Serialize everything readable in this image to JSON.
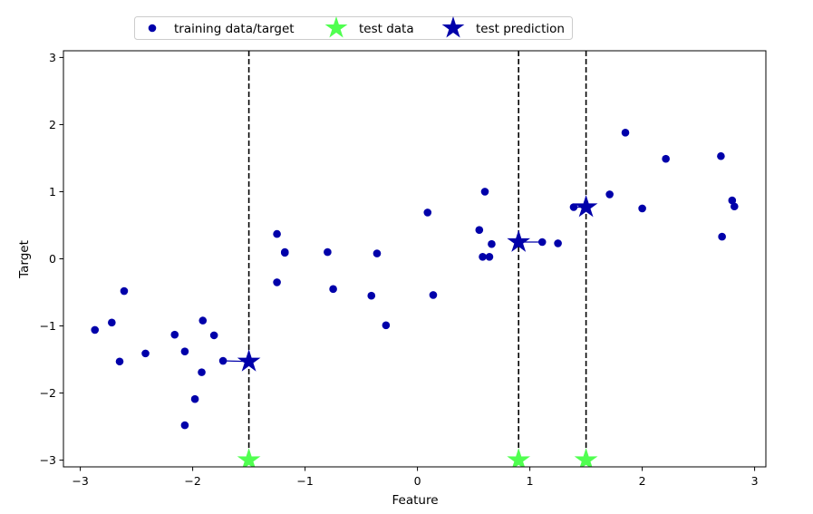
{
  "chart_data": {
    "type": "scatter",
    "title": "",
    "xlabel": "Feature",
    "ylabel": "Target",
    "xlim": [
      -3.15,
      3.1
    ],
    "ylim": [
      -3.1,
      3.1
    ],
    "xticks": [
      -3,
      -2,
      -1,
      0,
      1,
      2,
      3
    ],
    "yticks": [
      -3,
      -2,
      -1,
      0,
      1,
      2,
      3
    ],
    "xtick_labels": [
      "−3",
      "−2",
      "−1",
      "0",
      "1",
      "2",
      "3"
    ],
    "ytick_labels": [
      "−3",
      "−2",
      "−1",
      "0",
      "1",
      "2",
      "3"
    ],
    "grid": false,
    "legend_placement": "top-center, above plot",
    "colors": {
      "training": "#0000aa",
      "test_data": "#50ff50",
      "test_prediction": "#0000aa",
      "vline": "#000000"
    },
    "legend": [
      {
        "key": "training",
        "label": "training data/target",
        "marker": "circle"
      },
      {
        "key": "test_data",
        "label": "test data",
        "marker": "star"
      },
      {
        "key": "test_prediction",
        "label": "test prediction",
        "marker": "star"
      }
    ],
    "series": [
      {
        "name": "training data/target",
        "key": "training",
        "marker": "circle",
        "points": [
          [
            -2.87,
            -1.06
          ],
          [
            -2.72,
            -0.95
          ],
          [
            -2.65,
            -1.53
          ],
          [
            -2.61,
            -0.48
          ],
          [
            -2.42,
            -1.41
          ],
          [
            -2.16,
            -1.13
          ],
          [
            -2.07,
            -1.38
          ],
          [
            -2.07,
            -2.48
          ],
          [
            -1.98,
            -2.09
          ],
          [
            -1.92,
            -1.69
          ],
          [
            -1.91,
            -0.92
          ],
          [
            -1.81,
            -1.14
          ],
          [
            -1.73,
            -1.52
          ],
          [
            -1.25,
            0.37
          ],
          [
            -1.25,
            -0.35
          ],
          [
            -1.18,
            0.09
          ],
          [
            -1.18,
            0.1
          ],
          [
            -0.8,
            0.1
          ],
          [
            -0.75,
            -0.45
          ],
          [
            -0.41,
            -0.55
          ],
          [
            -0.36,
            0.08
          ],
          [
            -0.28,
            -0.99
          ],
          [
            0.09,
            0.69
          ],
          [
            0.14,
            -0.54
          ],
          [
            0.55,
            0.43
          ],
          [
            0.58,
            0.03
          ],
          [
            0.6,
            1.0
          ],
          [
            0.64,
            0.03
          ],
          [
            0.66,
            0.22
          ],
          [
            1.11,
            0.25
          ],
          [
            1.25,
            0.23
          ],
          [
            1.39,
            0.77
          ],
          [
            1.71,
            0.96
          ],
          [
            1.85,
            1.88
          ],
          [
            2.0,
            0.75
          ],
          [
            2.21,
            1.49
          ],
          [
            2.7,
            1.53
          ],
          [
            2.71,
            0.33
          ],
          [
            2.8,
            0.87
          ],
          [
            2.82,
            0.78
          ]
        ]
      },
      {
        "name": "test data",
        "key": "test_data",
        "marker": "star",
        "points": [
          [
            -1.5,
            -3.0
          ],
          [
            0.9,
            -3.0
          ],
          [
            1.5,
            -3.0
          ]
        ]
      },
      {
        "name": "test prediction",
        "key": "test_prediction",
        "marker": "star",
        "points": [
          [
            -1.5,
            -1.53
          ],
          [
            0.9,
            0.25
          ],
          [
            1.5,
            0.77
          ]
        ]
      }
    ],
    "vertical_lines": [
      -1.5,
      0.9,
      1.5
    ],
    "neighbor_links": [
      [
        [
          -1.5,
          -1.53
        ],
        [
          -1.73,
          -1.52
        ]
      ],
      [
        [
          0.9,
          0.25
        ],
        [
          1.11,
          0.25
        ]
      ],
      [
        [
          1.5,
          0.77
        ],
        [
          1.39,
          0.77
        ]
      ]
    ]
  }
}
